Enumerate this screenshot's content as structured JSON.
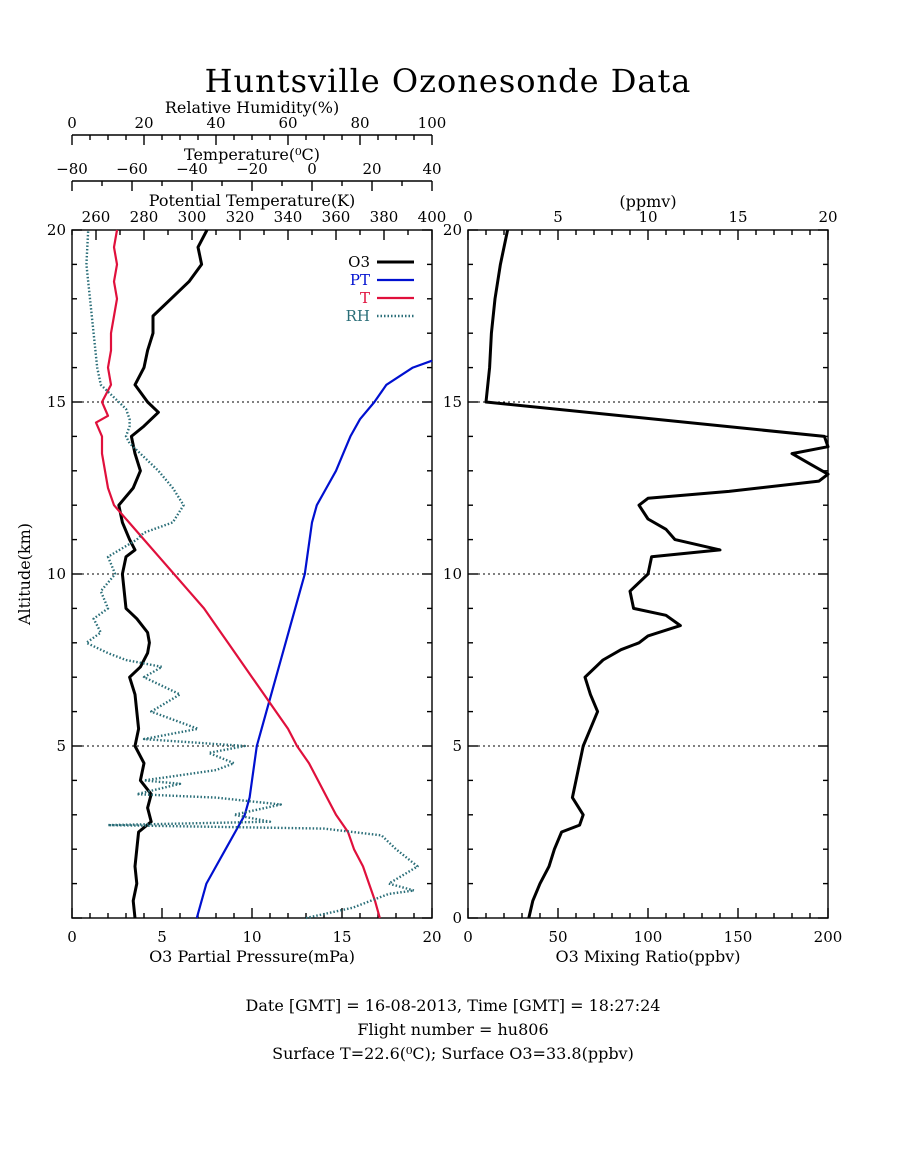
{
  "title": "Huntsville Ozonesonde Data",
  "footer": {
    "line1": "Date [GMT] = 16-08-2013,  Time [GMT] = 18:27:24",
    "line2": "Flight number = hu806",
    "line3": "Surface T=22.6(⁰C); Surface O3=33.8(ppbv)"
  },
  "chart_data": [
    {
      "type": "line",
      "title": "",
      "ylabel": "Altitude(km)",
      "ylim": [
        0,
        20
      ],
      "y_ticks": [
        5,
        10,
        15,
        20
      ],
      "y_tick_labels": [
        "5",
        "10",
        "15",
        "20"
      ],
      "grid_y": [
        5,
        10,
        15
      ],
      "legend_position": "top-right",
      "axes": {
        "o3": {
          "label": "O3 Partial Pressure(mPa)",
          "range": [
            0,
            20
          ],
          "ticks": [
            0,
            5,
            10,
            15,
            20
          ],
          "tick_labels": [
            "0",
            "5",
            "10",
            "15",
            "20"
          ]
        },
        "pt": {
          "label": "Potential Temperature(K)",
          "range": [
            250,
            400
          ],
          "ticks": [
            260,
            280,
            300,
            320,
            340,
            360,
            380,
            400
          ],
          "tick_labels": [
            "260",
            "280",
            "300",
            "320",
            "340",
            "360",
            "380",
            "400"
          ]
        },
        "t": {
          "label": "Temperature(⁰C)",
          "range": [
            -80,
            40
          ],
          "ticks": [
            -80,
            -60,
            -40,
            -20,
            0,
            20,
            40
          ],
          "tick_labels": [
            "−80",
            "−60",
            "−40",
            "−20",
            "0",
            "20",
            "40"
          ]
        },
        "rh": {
          "label": "Relative Humidity(%)",
          "range": [
            0,
            100
          ],
          "ticks": [
            0,
            20,
            40,
            60,
            80,
            100
          ],
          "tick_labels": [
            "0",
            "20",
            "40",
            "60",
            "80",
            "100"
          ]
        }
      },
      "series": [
        {
          "name": "O3",
          "axis": "o3",
          "color": "#000000",
          "points": [
            [
              3.5,
              0
            ],
            [
              3.4,
              0.5
            ],
            [
              3.6,
              1
            ],
            [
              3.5,
              1.5
            ],
            [
              3.6,
              2
            ],
            [
              3.7,
              2.5
            ],
            [
              4.4,
              2.8
            ],
            [
              4.2,
              3.2
            ],
            [
              4.4,
              3.6
            ],
            [
              3.8,
              4
            ],
            [
              4.0,
              4.5
            ],
            [
              3.5,
              5
            ],
            [
              3.7,
              5.5
            ],
            [
              3.6,
              6
            ],
            [
              3.5,
              6.5
            ],
            [
              3.2,
              7
            ],
            [
              3.8,
              7.3
            ],
            [
              4.2,
              7.7
            ],
            [
              4.3,
              8
            ],
            [
              4.2,
              8.3
            ],
            [
              3.6,
              8.7
            ],
            [
              3.0,
              9
            ],
            [
              2.9,
              9.5
            ],
            [
              2.8,
              10
            ],
            [
              3.0,
              10.5
            ],
            [
              3.5,
              10.7
            ],
            [
              3.2,
              11
            ],
            [
              2.8,
              11.5
            ],
            [
              2.6,
              12
            ],
            [
              3.4,
              12.5
            ],
            [
              3.8,
              13
            ],
            [
              3.5,
              13.5
            ],
            [
              3.3,
              14
            ],
            [
              4.0,
              14.3
            ],
            [
              4.8,
              14.7
            ],
            [
              4.2,
              15
            ],
            [
              3.5,
              15.5
            ],
            [
              4.0,
              16
            ],
            [
              4.2,
              16.5
            ],
            [
              4.5,
              17
            ],
            [
              4.5,
              17.5
            ],
            [
              5.5,
              18
            ],
            [
              6.5,
              18.5
            ],
            [
              7.2,
              19
            ],
            [
              7.0,
              19.5
            ],
            [
              7.5,
              20
            ]
          ]
        },
        {
          "name": "PT",
          "axis": "pt",
          "color": "#0010d0",
          "points": [
            [
              302,
              0
            ],
            [
              306,
              1
            ],
            [
              310,
              1.5
            ],
            [
              314,
              2
            ],
            [
              318,
              2.5
            ],
            [
              322,
              3
            ],
            [
              324,
              3.5
            ],
            [
              325,
              4
            ],
            [
              326,
              4.5
            ],
            [
              327,
              5
            ],
            [
              329,
              5.5
            ],
            [
              331,
              6
            ],
            [
              333,
              6.5
            ],
            [
              335,
              7
            ],
            [
              337,
              7.5
            ],
            [
              339,
              8
            ],
            [
              341,
              8.5
            ],
            [
              343,
              9
            ],
            [
              345,
              9.5
            ],
            [
              347,
              10
            ],
            [
              348,
              10.5
            ],
            [
              349,
              11
            ],
            [
              350,
              11.5
            ],
            [
              352,
              12
            ],
            [
              356,
              12.5
            ],
            [
              360,
              13
            ],
            [
              363,
              13.5
            ],
            [
              366,
              14
            ],
            [
              370,
              14.5
            ],
            [
              376,
              15
            ],
            [
              381,
              15.5
            ],
            [
              392,
              16
            ],
            [
              400,
              16.2
            ]
          ]
        },
        {
          "name": "T",
          "axis": "t",
          "color": "#e0103c",
          "points": [
            [
              22.6,
              0
            ],
            [
              21,
              0.5
            ],
            [
              19,
              1
            ],
            [
              17,
              1.5
            ],
            [
              14,
              2
            ],
            [
              12,
              2.5
            ],
            [
              8,
              3
            ],
            [
              5,
              3.5
            ],
            [
              2,
              4
            ],
            [
              -1,
              4.5
            ],
            [
              -5,
              5
            ],
            [
              -8,
              5.5
            ],
            [
              -12,
              6
            ],
            [
              -16,
              6.5
            ],
            [
              -20,
              7
            ],
            [
              -24,
              7.5
            ],
            [
              -28,
              8
            ],
            [
              -32,
              8.5
            ],
            [
              -36,
              9
            ],
            [
              -41,
              9.5
            ],
            [
              -46,
              10
            ],
            [
              -51,
              10.5
            ],
            [
              -56,
              11
            ],
            [
              -61,
              11.5
            ],
            [
              -66,
              12
            ],
            [
              -68,
              12.5
            ],
            [
              -69,
              13
            ],
            [
              -70,
              13.5
            ],
            [
              -70,
              14
            ],
            [
              -72,
              14.4
            ],
            [
              -68,
              14.6
            ],
            [
              -70,
              15
            ],
            [
              -67,
              15.5
            ],
            [
              -68,
              16
            ],
            [
              -67,
              16.5
            ],
            [
              -67,
              17
            ],
            [
              -66,
              17.5
            ],
            [
              -65,
              18
            ],
            [
              -66,
              18.5
            ],
            [
              -65,
              19
            ],
            [
              -66,
              19.5
            ],
            [
              -65,
              20
            ]
          ]
        },
        {
          "name": "RH",
          "axis": "rh",
          "color": "#2a6e78",
          "points": [
            [
              65,
              0
            ],
            [
              78,
              0.3
            ],
            [
              88,
              0.7
            ],
            [
              95,
              0.8
            ],
            [
              88,
              1
            ],
            [
              96,
              1.5
            ],
            [
              90,
              2
            ],
            [
              86,
              2.4
            ],
            [
              70,
              2.6
            ],
            [
              10,
              2.7
            ],
            [
              55,
              2.8
            ],
            [
              45,
              3
            ],
            [
              58,
              3.3
            ],
            [
              40,
              3.5
            ],
            [
              18,
              3.6
            ],
            [
              30,
              3.9
            ],
            [
              20,
              4
            ],
            [
              40,
              4.3
            ],
            [
              45,
              4.5
            ],
            [
              38,
              4.8
            ],
            [
              48,
              5
            ],
            [
              20,
              5.2
            ],
            [
              35,
              5.5
            ],
            [
              22,
              6
            ],
            [
              30,
              6.5
            ],
            [
              20,
              7
            ],
            [
              25,
              7.3
            ],
            [
              15,
              7.5
            ],
            [
              10,
              7.7
            ],
            [
              4,
              8
            ],
            [
              8,
              8.3
            ],
            [
              6,
              8.7
            ],
            [
              10,
              9
            ],
            [
              8,
              9.5
            ],
            [
              12,
              10
            ],
            [
              10,
              10.5
            ],
            [
              18,
              11
            ],
            [
              20,
              11.2
            ],
            [
              28,
              11.5
            ],
            [
              31,
              12
            ],
            [
              28,
              12.5
            ],
            [
              24,
              13
            ],
            [
              19,
              13.5
            ],
            [
              16,
              13.8
            ],
            [
              15,
              14
            ],
            [
              16,
              14.3
            ],
            [
              16,
              14.5
            ],
            [
              15,
              14.8
            ],
            [
              13,
              15
            ],
            [
              8,
              15.5
            ],
            [
              7,
              16
            ],
            [
              6,
              17
            ],
            [
              5,
              18
            ],
            [
              4,
              19
            ],
            [
              4.5,
              20
            ]
          ]
        }
      ]
    },
    {
      "type": "line",
      "title": "",
      "xlabel": "O3 Mixing Ratio(ppbv)",
      "xlim": [
        0,
        200
      ],
      "x_ticks": [
        0,
        50,
        100,
        150,
        200
      ],
      "x_tick_labels": [
        "0",
        "50",
        "100",
        "150",
        "200"
      ],
      "top_axis": {
        "label": "(ppmv)",
        "range": [
          0,
          20
        ],
        "ticks": [
          0,
          5,
          10,
          15,
          20
        ],
        "tick_labels": [
          "0",
          "5",
          "10",
          "15",
          "20"
        ]
      },
      "ylim": [
        0,
        20
      ],
      "y_ticks": [
        0,
        5,
        10,
        15,
        20
      ],
      "y_tick_labels": [
        "0",
        "5",
        "10",
        "15",
        "20"
      ],
      "grid_y": [
        5,
        10,
        15
      ],
      "series": [
        {
          "axis": "ppbv",
          "color": "#000000",
          "points": [
            [
              33.8,
              0
            ],
            [
              36,
              0.5
            ],
            [
              40,
              1
            ],
            [
              45,
              1.5
            ],
            [
              48,
              2
            ],
            [
              52,
              2.5
            ],
            [
              62,
              2.7
            ],
            [
              64,
              3
            ],
            [
              58,
              3.5
            ],
            [
              60,
              4
            ],
            [
              62,
              4.5
            ],
            [
              64,
              5
            ],
            [
              68,
              5.5
            ],
            [
              72,
              6
            ],
            [
              68,
              6.5
            ],
            [
              65,
              7
            ],
            [
              75,
              7.5
            ],
            [
              85,
              7.8
            ],
            [
              95,
              8
            ],
            [
              100,
              8.2
            ],
            [
              118,
              8.5
            ],
            [
              110,
              8.8
            ],
            [
              92,
              9
            ],
            [
              90,
              9.5
            ],
            [
              100,
              10
            ],
            [
              102,
              10.5
            ],
            [
              140,
              10.7
            ],
            [
              115,
              11
            ],
            [
              110,
              11.3
            ],
            [
              100,
              11.6
            ],
            [
              95,
              12
            ],
            [
              100,
              12.2
            ],
            [
              145,
              12.4
            ],
            [
              195,
              12.7
            ],
            [
              200,
              12.9
            ],
            [
              190,
              13.2
            ],
            [
              180,
              13.5
            ],
            [
              200,
              13.7
            ],
            [
              198,
              14
            ],
            [
              10,
              15
            ],
            [
              11,
              15.5
            ],
            [
              12,
              16
            ],
            [
              13,
              17
            ],
            [
              15,
              18
            ],
            [
              18,
              19
            ],
            [
              22,
              20
            ]
          ]
        }
      ]
    }
  ]
}
